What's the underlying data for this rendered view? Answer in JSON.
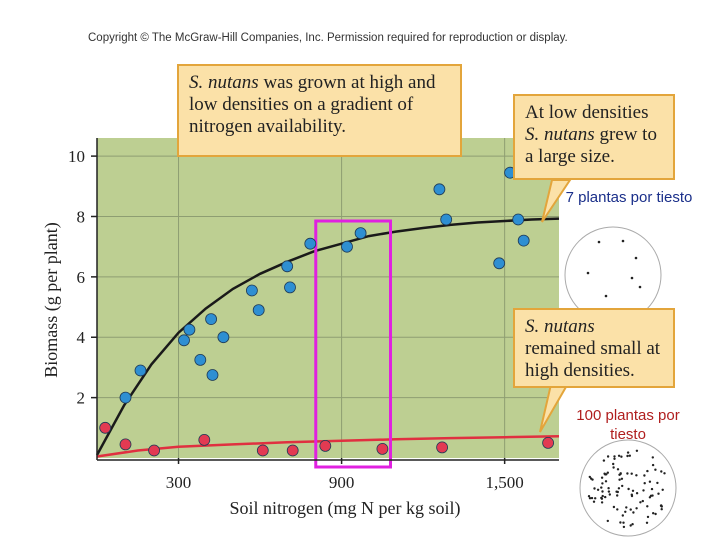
{
  "copyright": "Copyright © The McGraw-Hill Companies, Inc. Permission required for reproduction or display.",
  "colors": {
    "plot_background": "#bdcf92",
    "high_biomass_points": "#2e8fd2",
    "low_biomass_points": "#e23a52",
    "high_curve": "#1a1a1a",
    "low_curve": "#e03040",
    "highlight_box": "#e020e0",
    "annotation_fill": "#fbe1a8",
    "annotation_border": "#e3a53b",
    "label_low_density": "#1a2f8a",
    "label_high_density": "#b01e1e"
  },
  "annotations": {
    "top": {
      "species": "S. nutans",
      "text": " was grown at high and low densities on a gradient of nitrogen availability."
    },
    "right_top": {
      "prefix": "At low densities ",
      "species": "S. nutans",
      "suffix": " grew to a large size."
    },
    "right_bottom": {
      "species": "S. nutans",
      "suffix": " remained small at high densities."
    }
  },
  "pot_labels": {
    "low_density": "7 plantas por tiesto",
    "high_density": "100 plantas por tiesto"
  },
  "chart_data": {
    "type": "scatter",
    "title": "",
    "xlabel": "Soil nitrogen (mg N per kg soil)",
    "ylabel": "Biomass (g per plant)",
    "xlim": [
      0,
      1700
    ],
    "ylim": [
      0,
      10.6
    ],
    "xticks": [
      300,
      900,
      1500
    ],
    "xtick_labels": [
      "300",
      "900",
      "1,500"
    ],
    "yticks": [
      2,
      4,
      6,
      8,
      10
    ],
    "ytick_labels": [
      "2",
      "4",
      "6",
      "8",
      "10"
    ],
    "grid": true,
    "highlight_range_x": [
      805,
      1080
    ],
    "series": [
      {
        "name": "Low density (7 plants per pot)",
        "points": [
          [
            105,
            2.0
          ],
          [
            160,
            2.9
          ],
          [
            320,
            3.9
          ],
          [
            340,
            4.25
          ],
          [
            380,
            3.25
          ],
          [
            420,
            4.6
          ],
          [
            425,
            2.75
          ],
          [
            465,
            4.0
          ],
          [
            570,
            5.55
          ],
          [
            595,
            4.9
          ],
          [
            700,
            6.35
          ],
          [
            710,
            5.65
          ],
          [
            785,
            7.1
          ],
          [
            920,
            7.0
          ],
          [
            970,
            7.45
          ],
          [
            1260,
            8.9
          ],
          [
            1285,
            7.9
          ],
          [
            1480,
            6.45
          ],
          [
            1520,
            9.45
          ],
          [
            1550,
            7.9
          ],
          [
            1570,
            7.2
          ]
        ],
        "curve": [
          [
            0,
            0.1
          ],
          [
            100,
            1.75
          ],
          [
            200,
            3.1
          ],
          [
            300,
            4.15
          ],
          [
            400,
            4.95
          ],
          [
            500,
            5.6
          ],
          [
            600,
            6.1
          ],
          [
            700,
            6.5
          ],
          [
            800,
            6.85
          ],
          [
            900,
            7.1
          ],
          [
            1000,
            7.35
          ],
          [
            1100,
            7.5
          ],
          [
            1200,
            7.62
          ],
          [
            1300,
            7.72
          ],
          [
            1400,
            7.8
          ],
          [
            1500,
            7.85
          ],
          [
            1600,
            7.9
          ],
          [
            1700,
            7.93
          ]
        ]
      },
      {
        "name": "High density (100 plants per pot)",
        "points": [
          [
            30,
            1.0
          ],
          [
            105,
            0.45
          ],
          [
            210,
            0.25
          ],
          [
            395,
            0.6
          ],
          [
            610,
            0.25
          ],
          [
            720,
            0.25
          ],
          [
            840,
            0.4
          ],
          [
            1050,
            0.3
          ],
          [
            1270,
            0.35
          ],
          [
            1660,
            0.5
          ]
        ],
        "curve": [
          [
            0,
            0.05
          ],
          [
            150,
            0.25
          ],
          [
            300,
            0.37
          ],
          [
            500,
            0.45
          ],
          [
            700,
            0.52
          ],
          [
            900,
            0.57
          ],
          [
            1100,
            0.62
          ],
          [
            1300,
            0.66
          ],
          [
            1500,
            0.69
          ],
          [
            1700,
            0.72
          ]
        ]
      }
    ]
  }
}
